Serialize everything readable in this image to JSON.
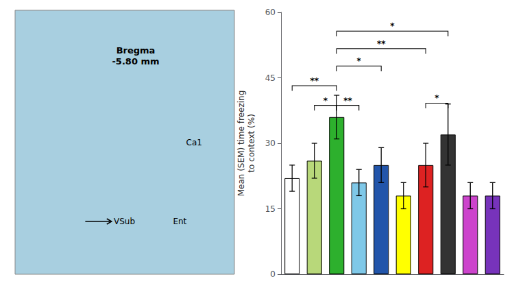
{
  "chart_data": {
    "type": "bar",
    "categories": [
      null,
      null,
      null,
      null,
      null,
      null,
      null,
      null,
      null,
      null
    ],
    "values": [
      22,
      26,
      36,
      21,
      25,
      18,
      25,
      32,
      18,
      18
    ],
    "errors": [
      3,
      4,
      5,
      3,
      4,
      3,
      5,
      7,
      3,
      3
    ],
    "colors": [
      "#ffffff",
      "#b8d87a",
      "#2db02d",
      "#7fc8e8",
      "#2255aa",
      "#ffff00",
      "#dd2222",
      "#333333",
      "#cc44cc",
      "#7733bb"
    ],
    "ylabel": "Mean (SEM) time freezing\nto context (%)",
    "ylim": [
      0,
      60
    ],
    "yticks": [
      0,
      15,
      30,
      45,
      60
    ],
    "tick_labels": "y",
    "grid": false,
    "annotations": [
      {
        "text": "*",
        "from": 1,
        "to": 2,
        "y": 37.5
      },
      {
        "text": "**",
        "from": 2,
        "to": 3,
        "y": 37.5
      },
      {
        "text": "**",
        "from": 0,
        "to": 2,
        "y": 42.0
      },
      {
        "text": "*",
        "from": 2,
        "to": 4,
        "y": 46.5
      },
      {
        "text": "**",
        "from": 2,
        "to": 6,
        "y": 50.5
      },
      {
        "text": "*",
        "from": 2,
        "to": 7,
        "y": 54.5
      },
      {
        "text": "*",
        "from": 6,
        "to": 7,
        "y": 38.0
      }
    ],
    "image": {
      "color": "#a8cfe0",
      "labels": [
        "Bregma\n-5.80 mm",
        "Ca1",
        "Ent",
        "VSub"
      ]
    }
  }
}
